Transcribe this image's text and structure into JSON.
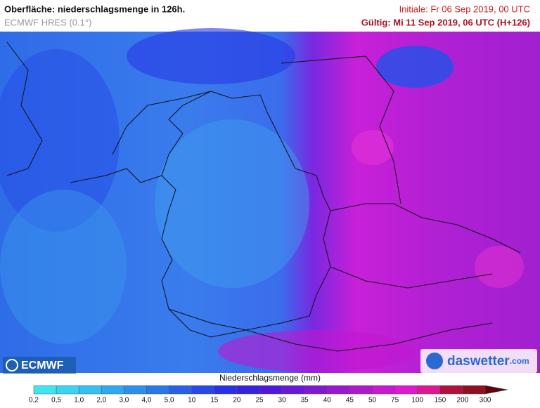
{
  "header": {
    "title": "Oberfläche: niederschlagsmenge in 126h.",
    "model": "ECMWF HRES (0.1°)",
    "initial": "Initiale: Fr 06 Sep 2019, 00 UTC",
    "valid": "Gültig: Mi 11 Sep 2019, 06 UTC (H+126)"
  },
  "logos": {
    "left": "ECMWF",
    "right_main": "daswetter",
    "right_suffix": ".com"
  },
  "legend": {
    "title": "Niederschlagsmenge (mm)",
    "labels": [
      "0,2",
      "0,5",
      "1,0",
      "2,0",
      "3,0",
      "4,0",
      "5,0",
      "10",
      "15",
      "20",
      "25",
      "30",
      "35",
      "40",
      "45",
      "50",
      "75",
      "100",
      "150",
      "200",
      "300"
    ],
    "colors": [
      "#3ee6f2",
      "#38d4f2",
      "#34c0f0",
      "#30a8ee",
      "#2c90ec",
      "#2878ea",
      "#2860e8",
      "#2848e6",
      "#2830e4",
      "#3820e0",
      "#5018dc",
      "#6818d8",
      "#8018d4",
      "#9818d0",
      "#b018cc",
      "#c818d0",
      "#e018d0",
      "#e01890",
      "#b01040",
      "#901020",
      "#600010"
    ]
  }
}
